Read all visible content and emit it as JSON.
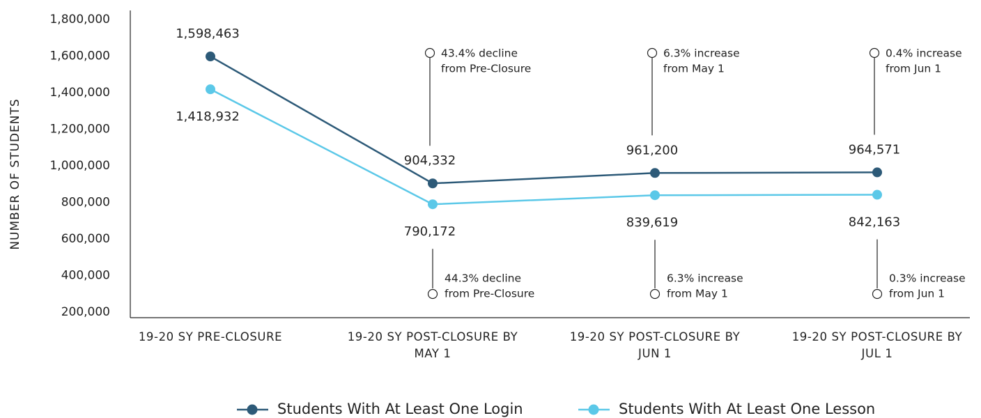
{
  "chart_data": {
    "type": "line",
    "y_label": "NUMBER OF STUDENTS",
    "categories": [
      "19-20 SY PRE-CLOSURE",
      "19-20 SY POST-CLOSURE BY MAY 1",
      "19-20 SY POST-CLOSURE BY JUN 1",
      "19-20 SY POST-CLOSURE BY JUL 1"
    ],
    "series": [
      {
        "name": "Students With At Least One Login",
        "color": "#2d5a78",
        "values": [
          1598463,
          904332,
          961200,
          964571
        ],
        "value_labels": [
          "1,598,463",
          "904,332",
          "961,200",
          "964,571"
        ],
        "annotations": [
          null,
          [
            "43.4% decline",
            "from Pre-Closure"
          ],
          [
            "6.3% increase",
            "from May 1"
          ],
          [
            "0.4% increase",
            "from Jun 1"
          ]
        ]
      },
      {
        "name": "Students With At Least One Lesson",
        "color": "#5bc8e8",
        "values": [
          1418932,
          790172,
          839619,
          842163
        ],
        "value_labels": [
          "1,418,932",
          "790,172",
          "839,619",
          "842,163"
        ],
        "annotations": [
          null,
          [
            "44.3% decline",
            "from Pre-Closure"
          ],
          [
            "6.3% increase",
            "from May 1"
          ],
          [
            "0.3% increase",
            "from Jun 1"
          ]
        ]
      }
    ],
    "ylim": [
      170000,
      1850000
    ],
    "yticks": [
      {
        "value": 200000,
        "label": "200,000"
      },
      {
        "value": 400000,
        "label": "400,000"
      },
      {
        "value": 600000,
        "label": "600,000"
      },
      {
        "value": 800000,
        "label": "800,000"
      },
      {
        "value": 1000000,
        "label": "1,000,000"
      },
      {
        "value": 1200000,
        "label": "1,200,000"
      },
      {
        "value": 1400000,
        "label": "1,400,000"
      },
      {
        "value": 1600000,
        "label": "1,600,000"
      },
      {
        "value": 1800000,
        "label": "1,800,000"
      }
    ],
    "grid": false
  }
}
